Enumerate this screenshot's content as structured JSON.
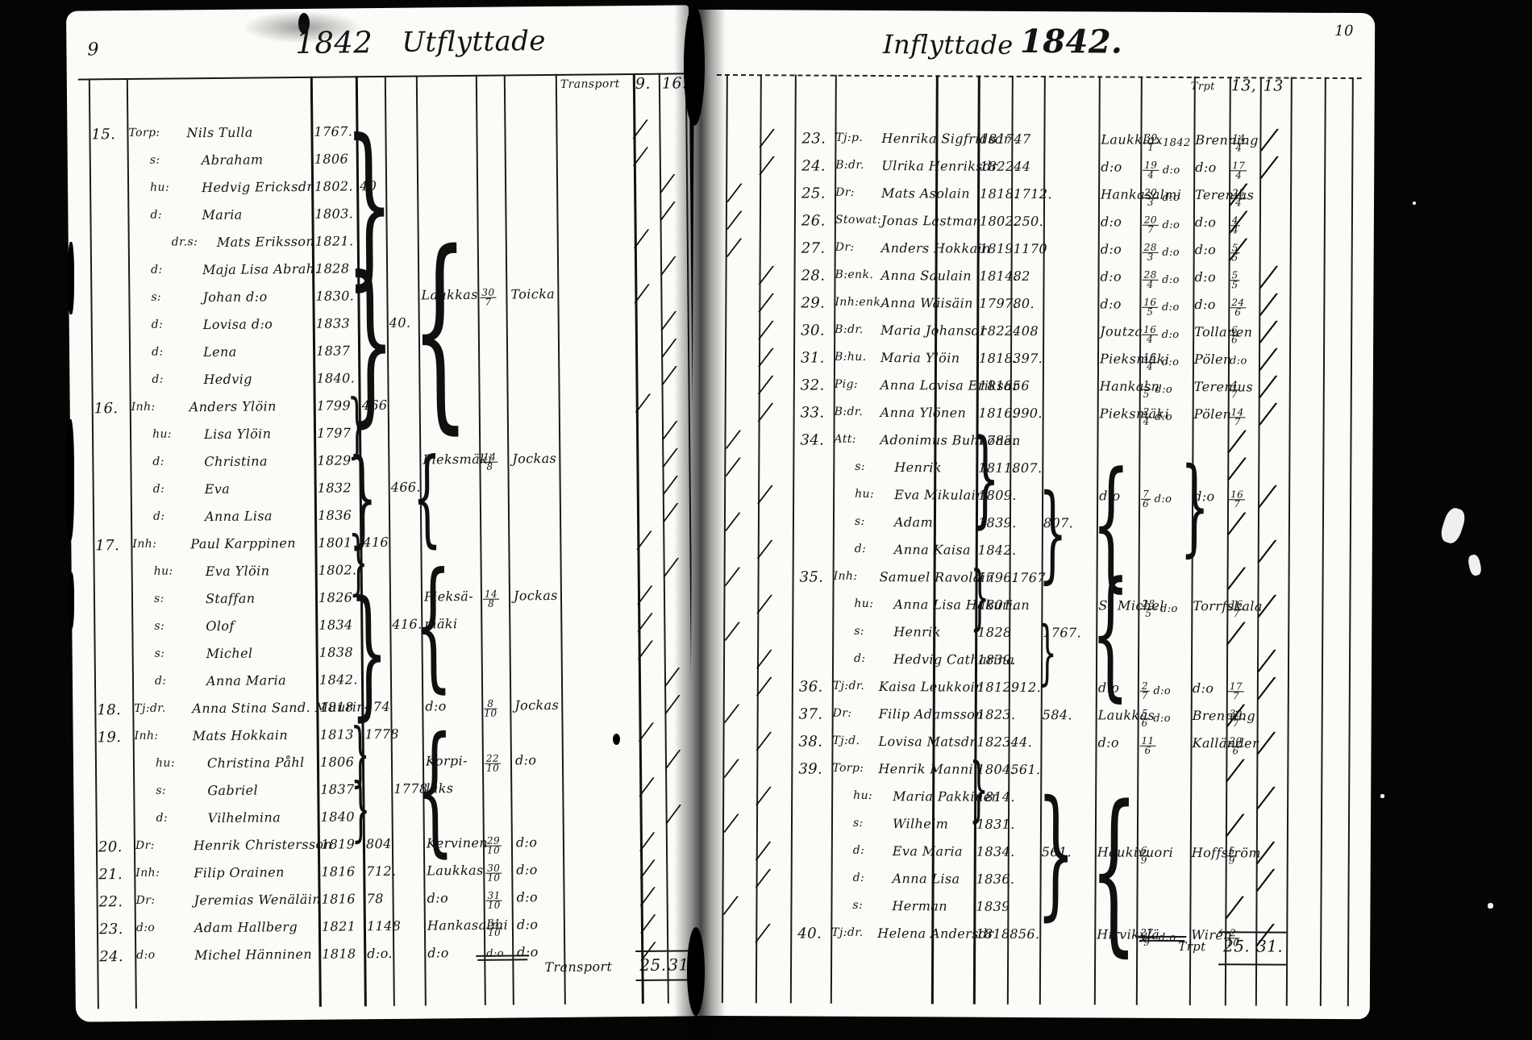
{
  "left_page": {
    "page_number": "9",
    "title_year": "1842",
    "title_word": "Utflyttade",
    "transport_top": {
      "label": "Transport",
      "a": "9.",
      "b": "16."
    },
    "transport_bottom": {
      "label": "Transport",
      "a": "25.",
      "b": "31."
    },
    "rows": [
      {
        "no": "15.",
        "pre": "Torp:",
        "name": "Nils Tulla",
        "born": "1767.",
        "t": "a",
        "ind": 0
      },
      {
        "pre": "s:",
        "name": "Abraham",
        "born": "1806",
        "t": "a",
        "ind": 1
      },
      {
        "pre": "hu:",
        "name": "Hedvig Ericksdr",
        "born": "1802.",
        "r1": "40",
        "t": "b",
        "ind": 1
      },
      {
        "pre": "d:",
        "name": "Maria",
        "born": "1803.",
        "t": "b",
        "ind": 1
      },
      {
        "pre": "dr.s:",
        "name": "Mats Eriksson",
        "born": "1821.",
        "t": "a",
        "ind": 2
      },
      {
        "pre": "d:",
        "name": "Maja Lisa Abrah.",
        "born": "1828",
        "t": "b",
        "ind": 1
      },
      {
        "pre": "s:",
        "name": "Johan    d:o",
        "born": "1830.",
        "pl": "Laukkas",
        "dt": "30/7",
        "de": "Toicka",
        "t": "a",
        "ind": 1
      },
      {
        "pre": "d:",
        "name": "Lovisa    d:o",
        "born": "1833",
        "r2": "40.",
        "t": "b",
        "ind": 1
      },
      {
        "pre": "d:",
        "name": "Lena",
        "born": "1837",
        "t": "b",
        "ind": 1
      },
      {
        "pre": "d:",
        "name": "Hedvig",
        "born": "1840.",
        "t": "b",
        "ind": 1
      },
      {
        "no": "16.",
        "pre": "Inh:",
        "name": "Anders Ylöin",
        "born": "1799",
        "r1": "466",
        "t": "a",
        "ind": 0
      },
      {
        "pre": "hu:",
        "name": "Lisa Ylöin",
        "born": "1797",
        "t": "b",
        "ind": 1
      },
      {
        "pre": "d:",
        "name": "Christina",
        "born": "1829",
        "pl": "Pieksmäki",
        "dt": "14/8",
        "de": "Jockas",
        "t": "b",
        "ind": 1
      },
      {
        "pre": "d:",
        "name": "Eva",
        "born": "1832",
        "r2": "466.",
        "t": "b",
        "ind": 1
      },
      {
        "pre": "d:",
        "name": "Anna Lisa",
        "born": "1836",
        "t": "b",
        "ind": 1
      },
      {
        "no": "17.",
        "pre": "Inh:",
        "name": "Paul Karppinen",
        "born": "1801",
        "r1": "416",
        "t": "a",
        "ind": 0
      },
      {
        "pre": "hu:",
        "name": "Eva Ylöin",
        "born": "1802.",
        "t": "b",
        "ind": 1
      },
      {
        "pre": "s:",
        "name": "Staffan",
        "born": "1826",
        "pl": "Pieksä-",
        "dt": "14/8",
        "de": "Jockas",
        "t": "a",
        "ind": 1
      },
      {
        "pre": "s:",
        "name": "Olof",
        "born": "1834",
        "r2": "416.",
        "pl": "mäki",
        "t": "a",
        "ind": 1
      },
      {
        "pre": "s:",
        "name": "Michel",
        "born": "1838",
        "t": "a",
        "ind": 1
      },
      {
        "pre": "d:",
        "name": "Anna Maria",
        "born": "1842.",
        "t": "b",
        "ind": 1
      },
      {
        "no": "18.",
        "pre": "Tj:dr.",
        "name": "Anna Stina Sand. Muurin",
        "born": "1818",
        "r1": "474",
        "pl": "d:o",
        "dt": "8/10",
        "de": "Jockas",
        "t": "b",
        "ind": 0
      },
      {
        "no": "19.",
        "pre": "Inh:",
        "name": "Mats Hokkain",
        "born": "1813",
        "r1": "1778",
        "t": "a",
        "ind": 0
      },
      {
        "pre": "hu:",
        "name": "Christina Påhl",
        "born": "1806",
        "pl": "Korpi-",
        "dt": "22/10",
        "de": "d:o",
        "t": "b",
        "ind": 1
      },
      {
        "pre": "s:",
        "name": "Gabriel",
        "born": "1837",
        "r2": "1778",
        "pl": "laks",
        "t": "a",
        "ind": 1
      },
      {
        "pre": "d:",
        "name": "Vilhelmina",
        "born": "1840",
        "t": "b",
        "ind": 1
      },
      {
        "no": "20.",
        "pre": "Dr:",
        "name": "Henrik Christersson",
        "born": "1819",
        "r1": "804",
        "pl": "Kervinen",
        "dt": "29/10",
        "de": "d:o",
        "t": "a",
        "ind": 0
      },
      {
        "no": "21.",
        "pre": "Inh:",
        "name": "Filip Orainen",
        "born": "1816",
        "r1": "712.",
        "pl": "Laukkas",
        "dt": "30/10",
        "de": "d:o",
        "t": "a",
        "ind": 0
      },
      {
        "no": "22.",
        "pre": "Dr:",
        "name": "Jeremias Wenäläin",
        "born": "1816",
        "r1": "78",
        "pl": "d:o",
        "dt": "31/10",
        "de": "d:o",
        "t": "a",
        "ind": 0
      },
      {
        "no": "23.",
        "pre": "d:o",
        "name": "Adam Hallberg",
        "born": "1821",
        "r1": "1148",
        "pl": "Hankasalmi",
        "dt": "31/10",
        "de": "d:o",
        "t": "a",
        "ind": 0
      },
      {
        "no": "24.",
        "pre": "d:o",
        "name": "Michel Hänninen",
        "born": "1818",
        "r1": "d:o.",
        "pl": "d:o",
        "dt": "d:o",
        "de": "d:o",
        "t": "a",
        "ind": 0
      }
    ],
    "braces": [
      {
        "c": "b",
        "f": 0,
        "t": 4
      },
      {
        "c": "b",
        "f": 5,
        "t": 9
      },
      {
        "c": "p",
        "f": 4,
        "t": 9
      },
      {
        "c": "b",
        "f": 10,
        "t": 11
      },
      {
        "c": "b",
        "f": 12,
        "t": 14
      },
      {
        "c": "p",
        "f": 12,
        "t": 14
      },
      {
        "c": "b",
        "f": 15,
        "t": 16
      },
      {
        "c": "b",
        "f": 17,
        "t": 20
      },
      {
        "c": "p",
        "f": 16,
        "t": 19
      },
      {
        "c": "b",
        "f": 22,
        "t": 23
      },
      {
        "c": "b",
        "f": 24,
        "t": 25
      },
      {
        "c": "p",
        "f": 22,
        "t": 25
      }
    ]
  },
  "right_page": {
    "page_number": "10",
    "title_word": "Inflyttade",
    "title_year": "1842.",
    "transport_top": {
      "label": "Trpt",
      "a": "13,",
      "b": "13"
    },
    "transport_bottom": {
      "label": "Trpt",
      "a": "25.",
      "b": "31."
    },
    "rows": [
      {
        "no": "23.",
        "pre": "Tj:p.",
        "name": "Henrika Sigfridsdr",
        "born": "1817.",
        "r1": "47",
        "pl": "Laukklax",
        "dt": "30/1 1842",
        "de": "Brenning",
        "d2": "14/4",
        "t": "b",
        "ind": 0
      },
      {
        "no": "24.",
        "pre": "B:dr.",
        "name": "Ulrika Henriksdr",
        "born": "1822.",
        "r1": "44",
        "pl": "d:o",
        "dt": "19/4 d:o",
        "de": "d:o",
        "d2": "17/4",
        "t": "b",
        "ind": 0
      },
      {
        "no": "25.",
        "pre": "Dr:",
        "name": "Mats Asolain",
        "born": "1818.",
        "r1": "1712.",
        "pl": "Hankasalmi",
        "dt": "20/3 d:o",
        "de": "Terenius",
        "d2": "25/4",
        "t": "a",
        "ind": 0
      },
      {
        "no": "26.",
        "pre": "Stowat:",
        "name": "Jonas Lastman",
        "born": "1802.",
        "r1": "250.",
        "pl": "d:o",
        "dt": "20/7 d:o",
        "de": "d:o",
        "d2": "4/4",
        "t": "a",
        "ind": 0
      },
      {
        "no": "27.",
        "pre": "Dr:",
        "name": "Anders Hokkain",
        "born": "1819",
        "r1": "1170",
        "pl": "d:o",
        "dt": "28/3 d:o",
        "de": "d:o",
        "d2": "5/5",
        "t": "a",
        "ind": 0
      },
      {
        "no": "28.",
        "pre": "B:enk.",
        "name": "Anna Saulain",
        "born": "1814.",
        "r1": "82",
        "pl": "d:o",
        "dt": "28/4 d:o",
        "de": "d:o",
        "d2": "5/5",
        "t": "b",
        "ind": 0
      },
      {
        "no": "29.",
        "pre": "Inh:enk.",
        "name": "Anna Wäisäin",
        "born": "1797.",
        "r1": "80.",
        "pl": "d:o",
        "dt": "16/5 d:o",
        "de": "d:o",
        "d2": "24/6",
        "t": "b",
        "ind": 0
      },
      {
        "no": "30.",
        "pre": "B:dr.",
        "name": "Maria Johansdr",
        "born": "1822.",
        "r1": "408",
        "pl": "Joutza",
        "dt": "16/4 d:o",
        "de": "Tollanen",
        "d2": "6/6",
        "t": "b",
        "ind": 0
      },
      {
        "no": "31.",
        "pre": "B:hu.",
        "name": "Maria Ylöin",
        "born": "1818.",
        "r1": "397.",
        "pl": "Pieksmäki",
        "dt": "16/4 d:o",
        "de": "Pölen",
        "d2": "d:o",
        "t": "b",
        "ind": 0
      },
      {
        "no": "32.",
        "pre": "Pig:",
        "name": "Anna Lovisa Eriksdr",
        "born": "1818.",
        "r1": "56",
        "pl": "Hankasn",
        "dt": "1/5 d:o",
        "de": "Terenius",
        "d2": "4/7",
        "t": "b",
        "ind": 0
      },
      {
        "no": "33.",
        "pre": "B:dr.",
        "name": "Anna Ylönen",
        "born": "1816.",
        "r1": "990.",
        "pl": "Pieksmäki",
        "dt": "2/4 d:o",
        "de": "Pölen",
        "d2": "14/7",
        "t": "b",
        "ind": 0
      },
      {
        "no": "34.",
        "pre": "Att:",
        "name": "Adonimus Buhkonen",
        "born": "1783.",
        "t": "a",
        "ind": 0
      },
      {
        "pre": "s:",
        "name": "Henrik",
        "born": "1811.",
        "r1": "807.",
        "t": "a",
        "ind": 1
      },
      {
        "pre": "hu:",
        "name": "Eva Mikulain",
        "born": "1809.",
        "pl": "d:o",
        "dt": "7/6 d:o",
        "de": "d:o",
        "d2": "16/7",
        "t": "b",
        "ind": 1
      },
      {
        "pre": "s:",
        "name": "Adam",
        "born": "1839.",
        "r2": "807.",
        "t": "a",
        "ind": 1
      },
      {
        "pre": "d:",
        "name": "Anna Kaisa",
        "born": "1842.",
        "t": "b",
        "ind": 1
      },
      {
        "no": "35.",
        "pre": "Inh:",
        "name": "Samuel Ravolain",
        "born": "1796.",
        "r1": "1767.",
        "t": "a",
        "ind": 0
      },
      {
        "pre": "hu:",
        "name": "Anna Lisa Hakurian",
        "born": "1801.",
        "pl": "St Michel",
        "dt": "28/5 d:o",
        "de": "Torrfskala",
        "d2": "16/7",
        "t": "b",
        "ind": 1
      },
      {
        "pre": "s:",
        "name": "Henrik",
        "born": "1828",
        "r2": "1767.",
        "t": "a",
        "ind": 1
      },
      {
        "pre": "d:",
        "name": "Hedvig Catharina",
        "born": "1839.",
        "t": "b",
        "ind": 1
      },
      {
        "no": "36.",
        "pre": "Tj:dr.",
        "name": "Kaisa Leukkoin",
        "born": "1812.",
        "r1": "912.",
        "pl": "d:o",
        "dt": "2/7 d:o",
        "de": "d:o",
        "d2": "17/7",
        "t": "b",
        "ind": 0
      },
      {
        "no": "37.",
        "pre": "Dr:",
        "name": "Filip Adamsson",
        "born": "1823.",
        "r2": "584.",
        "pl": "Laukkas",
        "dt": "5/6 d:o",
        "de": "Brenning",
        "d2": "30/7",
        "t": "a",
        "ind": 0
      },
      {
        "no": "38.",
        "pre": "Tj:d.",
        "name": "Lovisa Matsdr",
        "born": "1823.",
        "r1": "44.",
        "pl": "d:o",
        "dt": "11/6",
        "de": "Kalländer",
        "d2": "20/6",
        "t": "b",
        "ind": 0
      },
      {
        "no": "39.",
        "pre": "Torp:",
        "name": "Henrik Mannin",
        "born": "1804.",
        "r1": "561.",
        "t": "a",
        "ind": 0
      },
      {
        "pre": "hu:",
        "name": "Maria Pakkinen",
        "born": "1814.",
        "t": "b",
        "ind": 1
      },
      {
        "pre": "s:",
        "name": "Wilhelm",
        "born": "1831.",
        "t": "a",
        "ind": 1
      },
      {
        "pre": "d:",
        "name": "Eva Maria",
        "born": "1834.",
        "r2": "561.",
        "pl": "Haukivuori",
        "dt": "6/9",
        "de": "Hoffström",
        "d2": "5/9",
        "t": "b",
        "ind": 1
      },
      {
        "pre": "d:",
        "name": "Anna Lisa",
        "born": "1836.",
        "t": "b",
        "ind": 1
      },
      {
        "pre": "s:",
        "name": "Herman",
        "born": "1839",
        "t": "a",
        "ind": 1
      },
      {
        "no": "40.",
        "pre": "Tj:dr.",
        "name": "Helena Andersdr",
        "born": "1818",
        "r1": "856.",
        "pl": "Hirvikylä",
        "dt": "27/9 d:o",
        "de": "Wirén",
        "d2": "2/10",
        "t": "b",
        "ind": 0
      }
    ],
    "braces": [
      {
        "c": "b",
        "f": 11,
        "t": 13
      },
      {
        "c": "r",
        "f": 13,
        "t": 15
      },
      {
        "c": "p",
        "f": 12,
        "t": 15
      },
      {
        "c": "d",
        "f": 12,
        "t": 14
      },
      {
        "c": "b",
        "f": 16,
        "t": 17
      },
      {
        "c": "r",
        "f": 18,
        "t": 19
      },
      {
        "c": "p",
        "f": 16,
        "t": 19
      },
      {
        "c": "b",
        "f": 23,
        "t": 24
      },
      {
        "c": "r",
        "f": 24,
        "t": 27
      },
      {
        "c": "p",
        "f": 24,
        "t": 28
      }
    ]
  }
}
